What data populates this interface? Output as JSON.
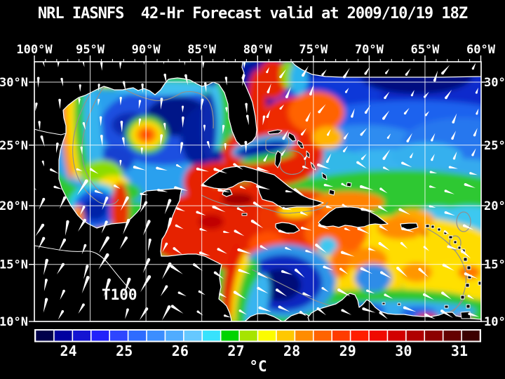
{
  "title": "NRL IASNFS  42-Hr Forecast valid at 2009/10/19 18Z",
  "map": {
    "overlay_label": "T100",
    "top_axis_labels": [
      "100°W",
      "95°W",
      "90°W",
      "85°W",
      "80°W",
      "75°W",
      "70°W",
      "65°W",
      "60°W"
    ],
    "left_axis_labels": [
      "30°N",
      "25°N",
      "20°N",
      "15°N",
      "10°N"
    ],
    "right_axis_labels": [
      "30°N",
      "25°N",
      "20°N",
      "15°N",
      "10°N"
    ],
    "colors": {
      "background": "#000000",
      "land": "#000000",
      "coastline": "#ffffff",
      "gridline": "#ffffff",
      "depth_contour": "#909090",
      "wind_arrow": "#ffffff",
      "text": "#ffffff"
    }
  },
  "colorbar": {
    "unit": "°C",
    "tick_labels": [
      "24",
      "25",
      "26",
      "27",
      "28",
      "29",
      "30",
      "31"
    ],
    "cell_colors": [
      "#00004b",
      "#0000a0",
      "#1414d2",
      "#2222fa",
      "#2e46ff",
      "#2e6cff",
      "#3c8eff",
      "#50acff",
      "#66c8ff",
      "#38e2fc",
      "#00d400",
      "#a6e400",
      "#fcfc00",
      "#ffc800",
      "#ff8c00",
      "#ff6400",
      "#ff3c00",
      "#ff1e00",
      "#f00a00",
      "#d20000",
      "#b00000",
      "#8c0000",
      "#640000",
      "#3c0000"
    ]
  }
}
